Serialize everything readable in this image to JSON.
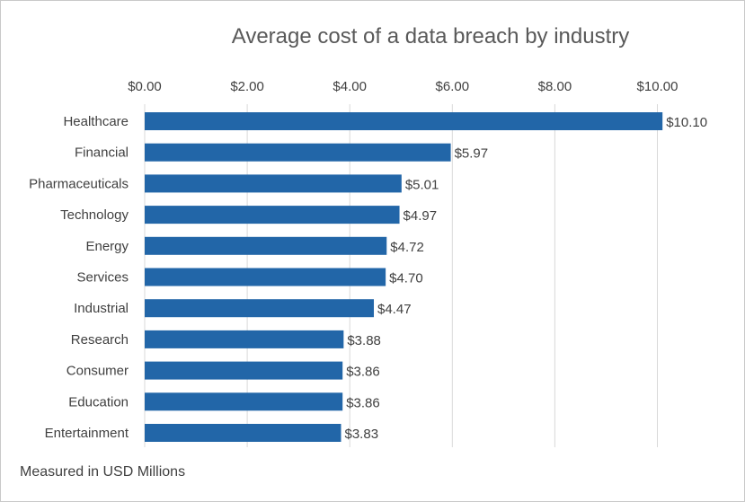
{
  "footnote": "Measured in USD Millions",
  "colors": {
    "bar": "#2266A8",
    "grid": "#D9D9D9",
    "text": "#404040",
    "title": "#595959"
  },
  "chart_data": {
    "type": "bar",
    "orientation": "horizontal",
    "title": "Average cost of a data breach by industry",
    "xlabel": "",
    "ylabel": "",
    "x_axis_position": "top",
    "xlim": [
      0,
      10.6
    ],
    "xticks": [
      0,
      2,
      4,
      6,
      8,
      10
    ],
    "xtick_labels": [
      "$0.00",
      "$2.00",
      "$4.00",
      "$6.00",
      "$8.00",
      "$10.00"
    ],
    "grid": true,
    "legend": "none",
    "categories": [
      "Healthcare",
      "Financial",
      "Pharmaceuticals",
      "Technology",
      "Energy",
      "Services",
      "Industrial",
      "Research",
      "Consumer",
      "Education",
      "Entertainment"
    ],
    "values": [
      10.1,
      5.97,
      5.01,
      4.97,
      4.72,
      4.7,
      4.47,
      3.88,
      3.86,
      3.86,
      3.83
    ],
    "data_labels": [
      "$10.10",
      "$5.97",
      "$5.01",
      "$4.97",
      "$4.72",
      "$4.70",
      "$4.47",
      "$3.88",
      "$3.86",
      "$3.86",
      "$3.83"
    ]
  }
}
